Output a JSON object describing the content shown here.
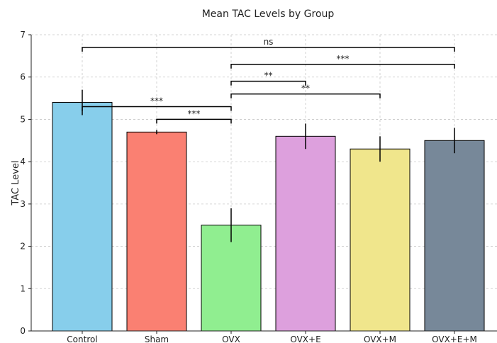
{
  "chart_data": {
    "type": "bar",
    "title": "Mean TAC Levels by Group",
    "xlabel": "",
    "ylabel": "TAC Level",
    "ylim": [
      0,
      7
    ],
    "yticks": [
      0,
      1,
      2,
      3,
      4,
      5,
      6,
      7
    ],
    "grid": true,
    "categories": [
      "Control",
      "Sham",
      "OVX",
      "OVX+E",
      "OVX+M",
      "OVX+E+M"
    ],
    "values": [
      5.4,
      4.7,
      2.5,
      4.6,
      4.3,
      4.5
    ],
    "errors": [
      0.3,
      0.05,
      0.4,
      0.3,
      0.3,
      0.3
    ],
    "colors": [
      "#87ceeb",
      "#fa8072",
      "#90ee90",
      "#dda0dd",
      "#f0e68c",
      "#778899"
    ],
    "significance": [
      {
        "from": "Control",
        "to": "OVX+E+M",
        "level": 6.7,
        "label": "ns"
      },
      {
        "from": "OVX",
        "to": "OVX+E+M",
        "level": 6.3,
        "label": "***"
      },
      {
        "from": "OVX",
        "to": "OVX+E",
        "level": 5.9,
        "label": "**"
      },
      {
        "from": "OVX",
        "to": "OVX+M",
        "level": 5.6,
        "label": "**"
      },
      {
        "from": "Control",
        "to": "OVX",
        "level": 5.3,
        "label": "***"
      },
      {
        "from": "Sham",
        "to": "OVX",
        "level": 5.0,
        "label": "***"
      }
    ]
  }
}
